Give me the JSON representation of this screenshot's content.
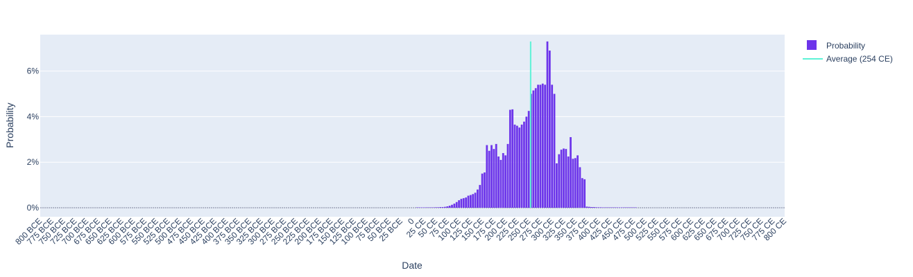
{
  "chart_data": {
    "type": "bar",
    "xlabel": "Date",
    "ylabel": "Probability",
    "x_range": [
      -800,
      800
    ],
    "bar_width": 5,
    "ylim": [
      0,
      0.076
    ],
    "y_ticks": [
      0,
      0.02,
      0.04,
      0.06
    ],
    "y_tick_labels": [
      "0%",
      "2%",
      "4%",
      "6%"
    ],
    "x_ticks": [
      -800,
      -775,
      -750,
      -725,
      -700,
      -675,
      -650,
      -625,
      -600,
      -575,
      -550,
      -525,
      -500,
      -475,
      -450,
      -425,
      -400,
      -375,
      -350,
      -325,
      -300,
      -275,
      -250,
      -225,
      -200,
      -175,
      -150,
      -125,
      -100,
      -75,
      -50,
      -25,
      0,
      25,
      50,
      75,
      100,
      125,
      150,
      175,
      200,
      225,
      250,
      275,
      300,
      325,
      350,
      375,
      400,
      425,
      450,
      475,
      500,
      525,
      550,
      575,
      600,
      625,
      650,
      675,
      700,
      725,
      750,
      775,
      800
    ],
    "x_tick_labels": [
      "800 BCE",
      "775 BCE",
      "750 BCE",
      "725 BCE",
      "700 BCE",
      "675 BCE",
      "650 BCE",
      "625 BCE",
      "600 BCE",
      "575 BCE",
      "550 BCE",
      "525 BCE",
      "500 BCE",
      "475 BCE",
      "450 BCE",
      "425 BCE",
      "400 BCE",
      "375 BCE",
      "350 BCE",
      "325 BCE",
      "300 BCE",
      "275 BCE",
      "250 BCE",
      "225 BCE",
      "200 BCE",
      "175 BCE",
      "150 BCE",
      "125 BCE",
      "100 BCE",
      "75 BCE",
      "50 BCE",
      "25 BCE",
      "0",
      "25 CE",
      "50 CE",
      "75 CE",
      "100 CE",
      "125 CE",
      "150 CE",
      "175 CE",
      "200 CE",
      "225 CE",
      "250 CE",
      "275 CE",
      "300 CE",
      "325 CE",
      "350 CE",
      "375 CE",
      "400 CE",
      "425 CE",
      "450 CE",
      "475 CE",
      "500 CE",
      "525 CE",
      "550 CE",
      "575 CE",
      "600 CE",
      "625 CE",
      "650 CE",
      "675 CE",
      "700 CE",
      "725 CE",
      "750 CE",
      "775 CE",
      "800 CE"
    ],
    "series": [
      {
        "name": "Probability",
        "color": "#6d35ea",
        "x": [
          10,
          15,
          20,
          25,
          30,
          35,
          40,
          45,
          50,
          55,
          60,
          65,
          70,
          75,
          80,
          85,
          90,
          95,
          100,
          105,
          110,
          115,
          120,
          125,
          130,
          135,
          140,
          145,
          150,
          155,
          160,
          165,
          170,
          175,
          180,
          185,
          190,
          195,
          200,
          205,
          210,
          215,
          220,
          225,
          230,
          235,
          240,
          245,
          250,
          255,
          260,
          265,
          270,
          275,
          280,
          285,
          290,
          295,
          300,
          305,
          310,
          315,
          320,
          325,
          330,
          335,
          340,
          345,
          350,
          355,
          360,
          365,
          370,
          375,
          380,
          385,
          390,
          395,
          400,
          405,
          410,
          415,
          420,
          425,
          430,
          435,
          440,
          445,
          450,
          455,
          460,
          465,
          470,
          475,
          480
        ],
        "y": [
          0.0001,
          0.0001,
          0.0001,
          0.0001,
          0.0001,
          0.0001,
          0.0001,
          0.0001,
          0.0002,
          0.0002,
          0.0003,
          0.0003,
          0.0004,
          0.0006,
          0.0009,
          0.0013,
          0.0018,
          0.0025,
          0.0033,
          0.0039,
          0.0042,
          0.0045,
          0.0053,
          0.0056,
          0.006,
          0.0066,
          0.008,
          0.01,
          0.015,
          0.0155,
          0.0275,
          0.025,
          0.0275,
          0.0258,
          0.028,
          0.0225,
          0.021,
          0.024,
          0.023,
          0.028,
          0.043,
          0.0432,
          0.0365,
          0.036,
          0.0352,
          0.0365,
          0.0378,
          0.04,
          0.0425,
          0.05,
          0.0515,
          0.0525,
          0.054,
          0.054,
          0.0545,
          0.054,
          0.073,
          0.069,
          0.054,
          0.05,
          0.0195,
          0.0235,
          0.0255,
          0.026,
          0.0258,
          0.0225,
          0.031,
          0.0215,
          0.0218,
          0.023,
          0.0178,
          0.013,
          0.0125,
          0.0005,
          0.0004,
          0.0003,
          0.0003,
          0.0002,
          0.0002,
          0.0002,
          0.0001,
          0.0001,
          0.0001,
          0.0001,
          0.0001,
          0.0001,
          0.0001,
          0.0001,
          0.0001,
          0.0001,
          0.0001,
          0.0001,
          0.0001,
          0.0001,
          0.0001
        ]
      },
      {
        "name": "Average (254 CE)",
        "type": "line",
        "color": "#5cf2d6",
        "x": [
          254,
          254
        ],
        "y": [
          0,
          0.073
        ]
      }
    ],
    "legend": {
      "position": "top-right",
      "entries": [
        "Probability",
        "Average (254 CE)"
      ]
    }
  }
}
